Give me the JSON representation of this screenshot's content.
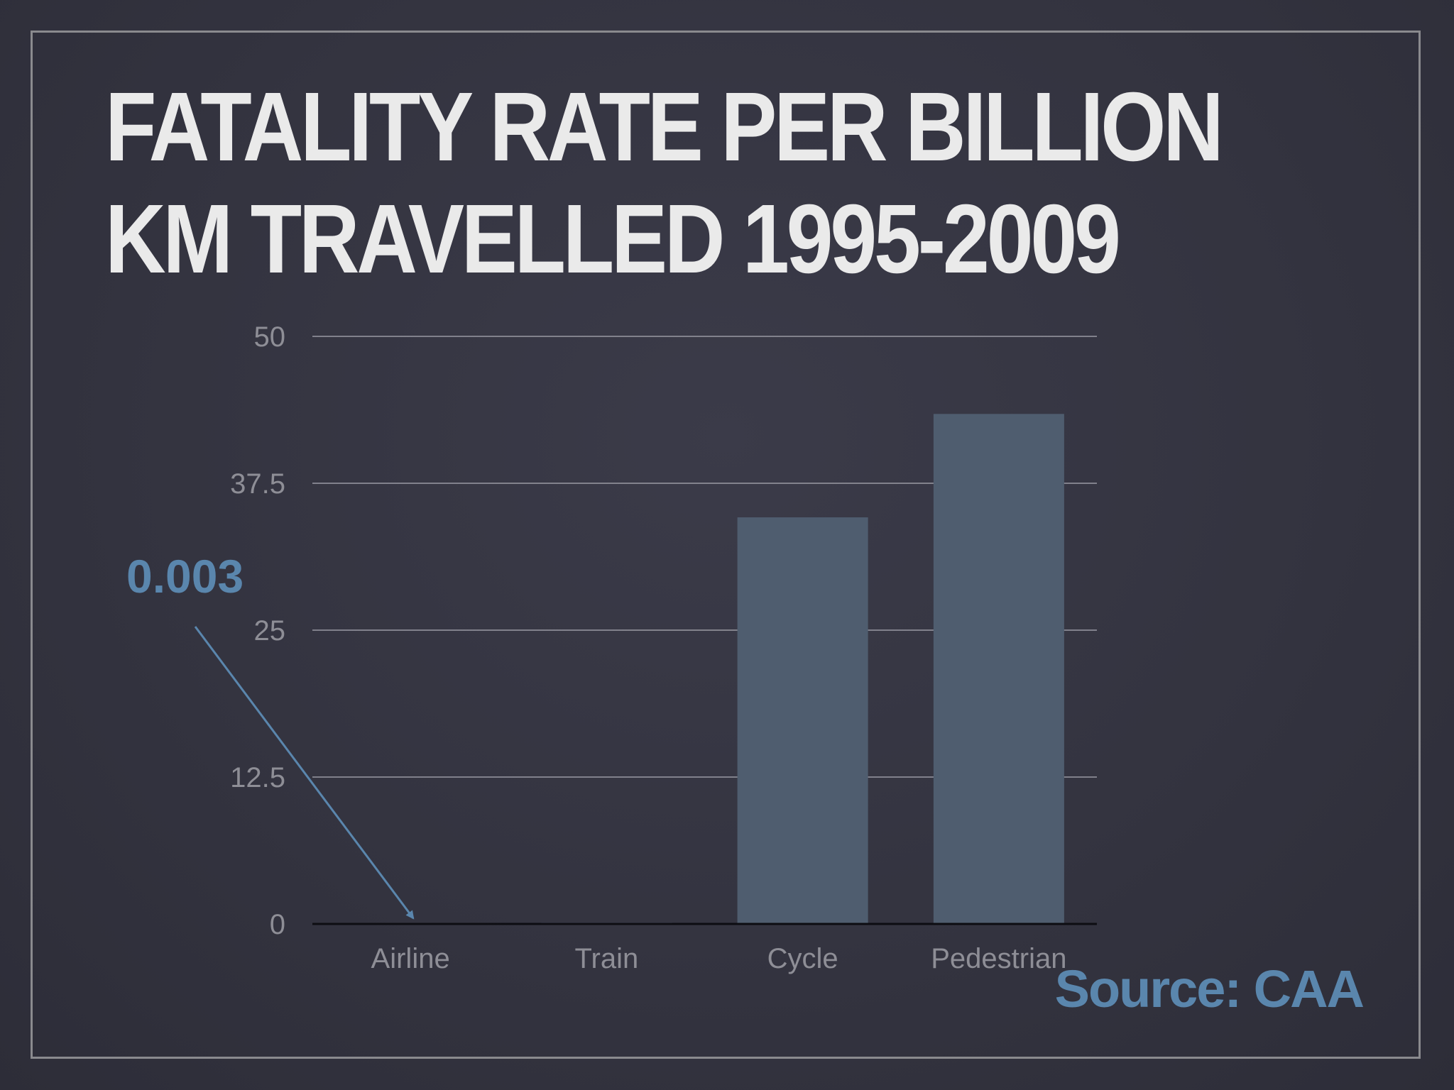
{
  "slide": {
    "title_line1": "FATALITY RATE PER BILLION",
    "title_line2": "KM TRAVELLED 1995-2009",
    "source": "Source: CAA"
  },
  "colors": {
    "background": "#343441",
    "bar": "#4f5d6f",
    "accent": "#5a86ad",
    "grid": "#9a9aa4",
    "text_muted": "#8e8e96",
    "title": "#eaeaea"
  },
  "chart_data": {
    "type": "bar",
    "title": "FATALITY RATE PER BILLION KM TRAVELLED 1995-2009",
    "xlabel": "",
    "ylabel": "",
    "categories": [
      "Airline",
      "Train",
      "Cycle",
      "Pedestrian"
    ],
    "values": [
      0.003,
      0.1,
      34.6,
      43.4
    ],
    "ylim": [
      0,
      50
    ],
    "yticks": [
      0,
      12.5,
      25,
      37.5,
      50
    ],
    "ytick_labels": [
      "0",
      "12.5",
      "25",
      "37.5",
      "50"
    ],
    "grid": true,
    "legend": "none",
    "annotations": [
      {
        "text": "0.003",
        "target_category": "Airline",
        "style": "arrow"
      }
    ]
  }
}
